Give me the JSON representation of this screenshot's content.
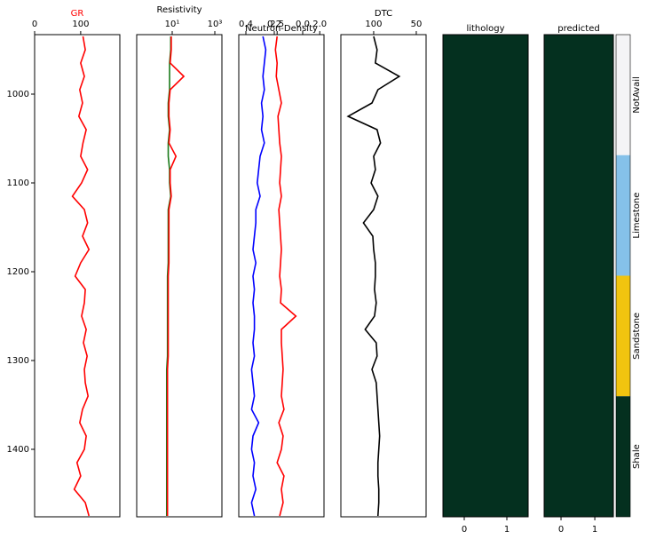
{
  "chart_data": [
    {
      "type": "line",
      "title": "GR",
      "title_color": "#ff0000",
      "xlim": [
        0,
        185
      ],
      "xticks": [
        0,
        100
      ],
      "ylim": [
        1476,
        933
      ],
      "yticks": [
        1000,
        1100,
        1200,
        1300,
        1400
      ],
      "y": [
        935,
        950,
        965,
        980,
        995,
        1010,
        1025,
        1040,
        1055,
        1070,
        1085,
        1100,
        1115,
        1130,
        1145,
        1160,
        1175,
        1190,
        1205,
        1220,
        1235,
        1250,
        1265,
        1280,
        1295,
        1310,
        1325,
        1340,
        1355,
        1370,
        1385,
        1400,
        1415,
        1430,
        1445,
        1460,
        1475
      ],
      "series": [
        {
          "color": "#ff0000",
          "values": [
            105,
            110,
            100,
            108,
            98,
            104,
            96,
            112,
            105,
            100,
            115,
            102,
            82,
            108,
            115,
            104,
            118,
            100,
            88,
            110,
            108,
            102,
            112,
            106,
            114,
            108,
            110,
            116,
            104,
            98,
            112,
            108,
            92,
            100,
            86,
            110,
            118
          ]
        }
      ]
    },
    {
      "type": "line",
      "title": "Resistivity",
      "xscale": "log",
      "xlim": [
        0.215,
        2154
      ],
      "xticks": [
        {
          "value": 10,
          "label": "10¹"
        },
        {
          "value": 1000,
          "label": "10³"
        }
      ],
      "series": [
        {
          "color": "#1a7a1a",
          "values": [
            8.5,
            8.5,
            7.5,
            7.5,
            7.5,
            6.5,
            6.5,
            7.5,
            6.5,
            6.5,
            7.5,
            7.5,
            8.5,
            6.5,
            6.5,
            6.5,
            6.5,
            6.5,
            6,
            6,
            6,
            6,
            6,
            6,
            6,
            5.5,
            5.5,
            5.5,
            5.5,
            5.5,
            5.5,
            5.5,
            5.5,
            5.5,
            5.5,
            5.5,
            5.5
          ]
        },
        {
          "color": "#ff0000",
          "values": [
            9,
            9,
            8,
            35,
            8,
            7,
            7,
            8,
            7,
            15,
            8,
            8,
            9,
            7,
            7,
            7,
            7,
            7,
            6.5,
            6.5,
            6.5,
            6.5,
            6.5,
            6.5,
            6.5,
            6,
            6,
            6,
            6,
            6,
            6,
            6,
            6,
            6,
            6,
            6,
            6
          ]
        }
      ]
    },
    {
      "type": "line",
      "title": "Neutron-Density",
      "xlim": [
        0.45,
        -0.15
      ],
      "xticks": [
        0.4,
        0.2,
        {
          "value": 0,
          "label": "0.0"
        }
      ],
      "x2lim": [
        2.95,
        1.95
      ],
      "x2ticks": [
        2.5,
        {
          "value": 2,
          "label": "2.0"
        }
      ],
      "series": [
        {
          "color": "#0000ff",
          "values": [
            0.28,
            0.26,
            0.27,
            0.28,
            0.27,
            0.29,
            0.28,
            0.29,
            0.27,
            0.3,
            0.31,
            0.32,
            0.3,
            0.33,
            0.33,
            0.34,
            0.35,
            0.33,
            0.35,
            0.34,
            0.35,
            0.34,
            0.34,
            0.35,
            0.34,
            0.36,
            0.35,
            0.34,
            0.36,
            0.31,
            0.35,
            0.36,
            0.34,
            0.35,
            0.33,
            0.36,
            0.34
          ]
        },
        {
          "color": "#ff0000",
          "axis": "x2",
          "values": [
            2.5,
            2.52,
            2.5,
            2.51,
            2.48,
            2.45,
            2.49,
            2.48,
            2.47,
            2.45,
            2.46,
            2.47,
            2.45,
            2.48,
            2.47,
            2.46,
            2.45,
            2.46,
            2.47,
            2.45,
            2.46,
            2.28,
            2.45,
            2.45,
            2.44,
            2.43,
            2.44,
            2.45,
            2.42,
            2.48,
            2.43,
            2.45,
            2.5,
            2.42,
            2.45,
            2.43,
            2.47
          ]
        }
      ]
    },
    {
      "type": "line",
      "title": "DTC",
      "xlim": [
        138.5,
        38.5
      ],
      "xticks": [
        100,
        50
      ],
      "series": [
        {
          "color": "#000000",
          "values": [
            100,
            96,
            98,
            70,
            95,
            102,
            130,
            96,
            92,
            100,
            98,
            103,
            95,
            100,
            112,
            101,
            100,
            98,
            98,
            99,
            97,
            99,
            110,
            97,
            96,
            102,
            97,
            96,
            95,
            94,
            93,
            94,
            95,
            95,
            94,
            94,
            95
          ]
        }
      ]
    },
    {
      "type": "facies",
      "title": "lithology",
      "xlim": [
        -0.5,
        1.5
      ],
      "xticks": [
        0,
        1
      ],
      "intervals": [
        {
          "from": 933,
          "to": 1476,
          "class": 3
        }
      ]
    },
    {
      "type": "facies",
      "title": "predicted",
      "xlim": [
        -0.5,
        1.55
      ],
      "xticks": [
        0,
        1
      ],
      "intervals": [
        {
          "from": 933,
          "to": 1476,
          "class": 3
        }
      ]
    },
    {
      "type": "colorbar",
      "categories": [
        "NotAvail",
        "Limestone",
        "Sandstone",
        "Shale"
      ],
      "colors": [
        "#f4f4f6",
        "#85c1e9",
        "#f1c40f",
        "#04301f"
      ]
    }
  ]
}
